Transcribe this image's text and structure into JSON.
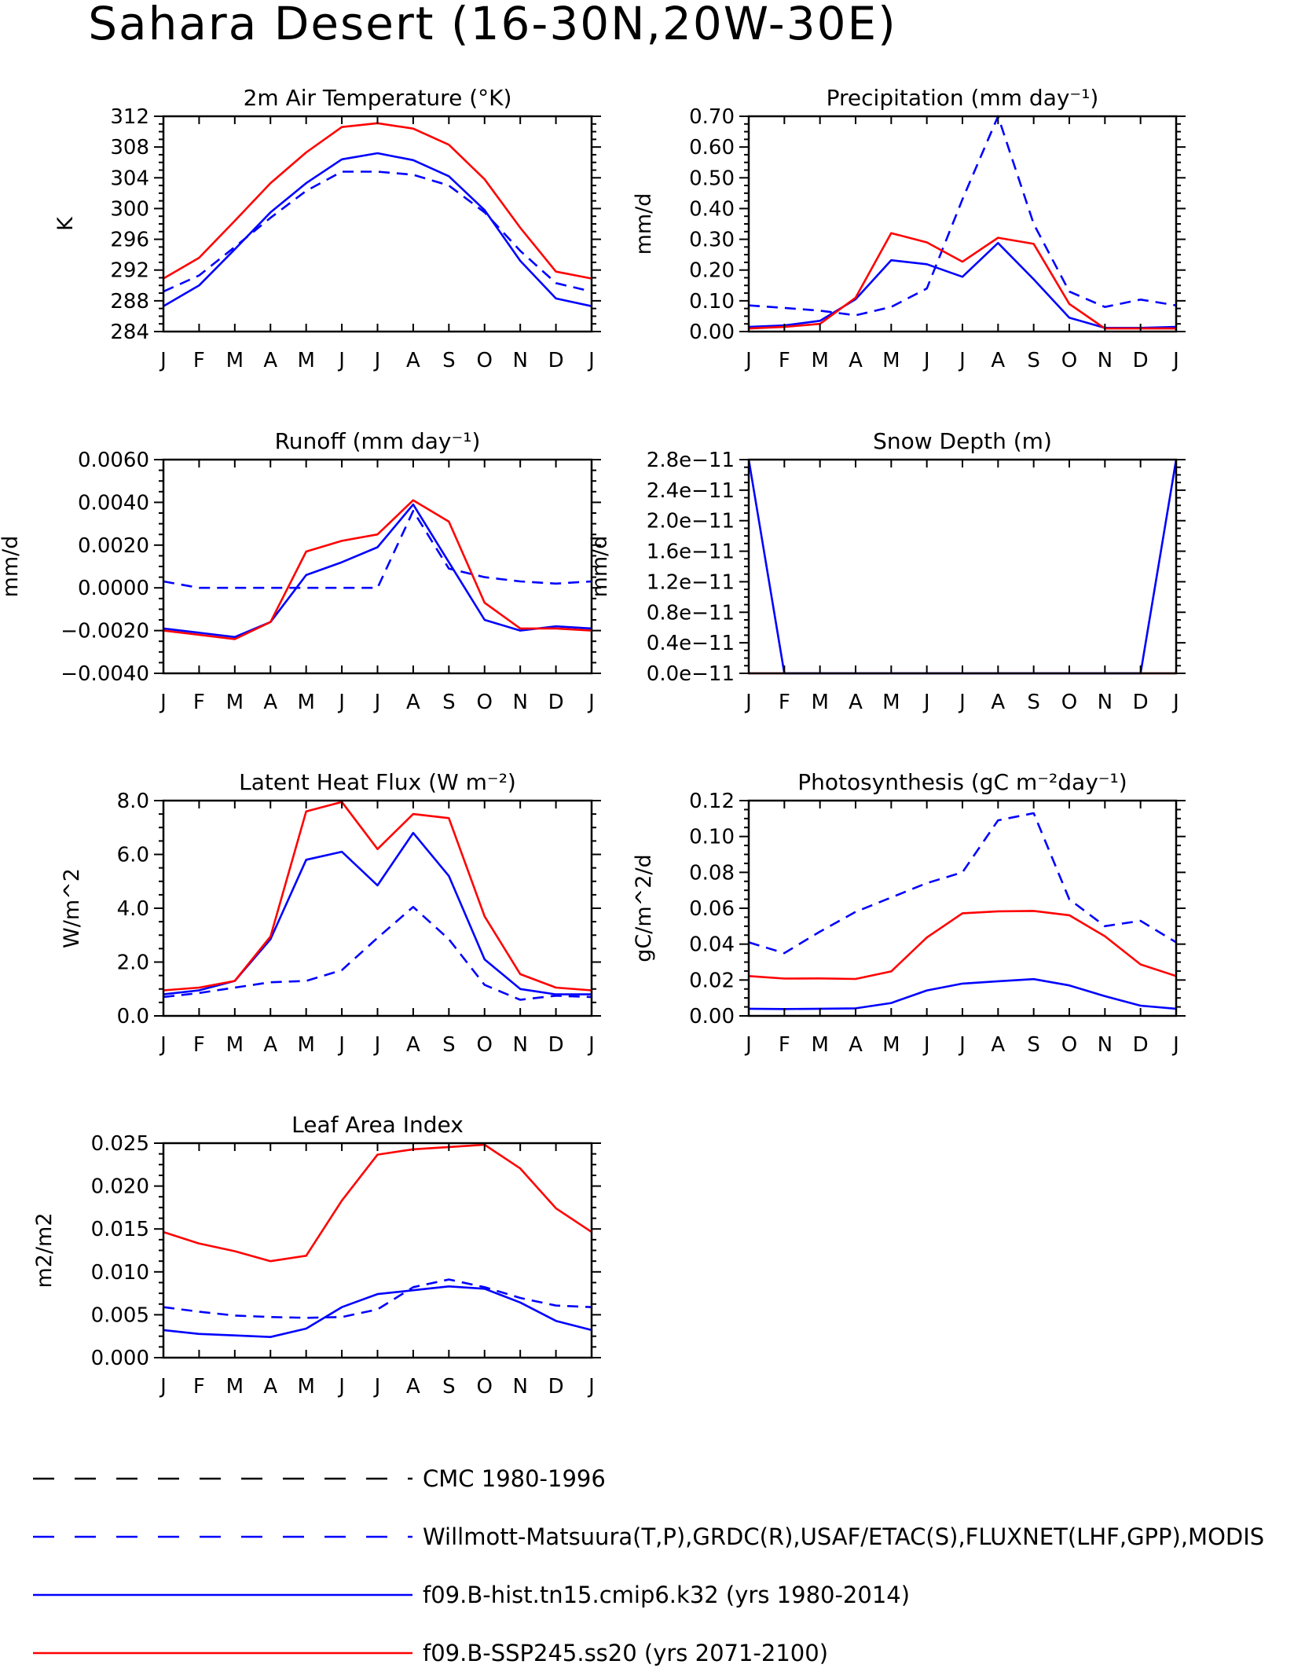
{
  "figure_title": "Sahara Desert (16-30N,20W-30E)",
  "months": [
    "J",
    "F",
    "M",
    "A",
    "M",
    "J",
    "J",
    "A",
    "S",
    "O",
    "N",
    "D",
    "J"
  ],
  "colors": {
    "obs_cmc": "#000000",
    "obs_other": "#0000ff",
    "hist": "#0000ff",
    "future": "#ff0000"
  },
  "legend": [
    {
      "label": "CMC 1980-1996",
      "color": "#000000",
      "dashed": true
    },
    {
      "label": "Willmott-Matsuura(T,P),GRDC(R),USAF/ETAC(S),FLUXNET(LHF,GPP),MODIS",
      "color": "#0000ff",
      "dashed": true
    },
    {
      "label": "f09.B-hist.tn15.cmip6.k32 (yrs 1980-2014)",
      "color": "#0000ff",
      "dashed": false
    },
    {
      "label": "f09.B-SSP245.ss20 (yrs 2071-2100)",
      "color": "#ff0000",
      "dashed": false
    }
  ],
  "chart_data": [
    {
      "type": "line",
      "title": "2m Air Temperature (°K)",
      "ylabel": "K",
      "ylim": [
        284,
        312
      ],
      "yticks": [
        "284",
        "288",
        "292",
        "296",
        "300",
        "304",
        "308",
        "312"
      ],
      "series": [
        {
          "name": "Willmott-Matsuura(T,P),GRDC(R),USAF/ETAC(S),FLUXNET(LHF,GPP),MODIS",
          "color": "#0000ff",
          "dashed": true,
          "values": [
            289.2,
            291.3,
            295.0,
            298.8,
            302.3,
            304.8,
            304.8,
            304.4,
            303.0,
            299.5,
            294.5,
            290.3,
            289.2
          ]
        },
        {
          "name": "f09.B-hist.tn15.cmip6.k32 (yrs 1980-2014)",
          "color": "#0000ff",
          "dashed": false,
          "values": [
            287.3,
            290.0,
            294.7,
            299.5,
            303.3,
            306.4,
            307.2,
            306.3,
            304.2,
            299.8,
            293.2,
            288.3,
            287.3
          ]
        },
        {
          "name": "f09.B-SSP245.ss20 (yrs 2071-2100)",
          "color": "#ff0000",
          "dashed": false,
          "values": [
            290.9,
            293.6,
            298.4,
            303.3,
            307.3,
            310.6,
            311.1,
            310.4,
            308.3,
            303.8,
            297.5,
            291.8,
            290.9
          ]
        }
      ]
    },
    {
      "type": "line",
      "title": "Precipitation (mm day⁻¹)",
      "ylabel": "mm/d",
      "ylim": [
        0,
        0.7
      ],
      "yticks": [
        "0.00",
        "0.10",
        "0.20",
        "0.30",
        "0.40",
        "0.50",
        "0.60",
        "0.70"
      ],
      "series": [
        {
          "name": "Willmott-Matsuura(T,P),GRDC(R),USAF/ETAC(S),FLUXNET(LHF,GPP),MODIS",
          "color": "#0000ff",
          "dashed": true,
          "values": [
            0.085,
            0.077,
            0.068,
            0.053,
            0.08,
            0.14,
            0.43,
            0.7,
            0.35,
            0.13,
            0.08,
            0.104,
            0.085
          ]
        },
        {
          "name": "f09.B-hist.tn15.cmip6.k32 (yrs 1980-2014)",
          "color": "#0000ff",
          "dashed": false,
          "values": [
            0.015,
            0.02,
            0.035,
            0.105,
            0.232,
            0.219,
            0.178,
            0.288,
            0.17,
            0.045,
            0.012,
            0.012,
            0.015
          ]
        },
        {
          "name": "f09.B-SSP245.ss20 (yrs 2071-2100)",
          "color": "#ff0000",
          "dashed": false,
          "values": [
            0.01,
            0.015,
            0.025,
            0.11,
            0.32,
            0.29,
            0.227,
            0.305,
            0.285,
            0.09,
            0.01,
            0.01,
            0.01
          ]
        }
      ]
    },
    {
      "type": "line",
      "title": "Runoff (mm day⁻¹)",
      "ylabel": "mm/d",
      "ylim": [
        -0.004,
        0.006
      ],
      "yticks": [
        "−0.0040",
        "−0.0020",
        "0.0000",
        "0.0020",
        "0.0040",
        "0.0060"
      ],
      "series": [
        {
          "name": "Willmott-Matsuura(T,P),GRDC(R),USAF/ETAC(S),FLUXNET(LHF,GPP),MODIS",
          "color": "#0000ff",
          "dashed": true,
          "values": [
            0.0003,
            0.0,
            0.0,
            0.0,
            0.0,
            0.0,
            0.0,
            0.0036,
            0.0009,
            0.0005,
            0.0003,
            0.0002,
            0.0003
          ]
        },
        {
          "name": "f09.B-hist.tn15.cmip6.k32 (yrs 1980-2014)",
          "color": "#0000ff",
          "dashed": false,
          "values": [
            -0.0019,
            -0.0021,
            -0.0023,
            -0.0016,
            0.0006,
            0.0012,
            0.0019,
            0.0039,
            0.0012,
            -0.0015,
            -0.002,
            -0.0018,
            -0.0019
          ]
        },
        {
          "name": "f09.B-SSP245.ss20 (yrs 2071-2100)",
          "color": "#ff0000",
          "dashed": false,
          "values": [
            -0.002,
            -0.0022,
            -0.0024,
            -0.0016,
            0.0017,
            0.0022,
            0.0025,
            0.0041,
            0.0031,
            -0.0007,
            -0.0019,
            -0.0019,
            -0.002
          ]
        }
      ]
    },
    {
      "type": "line",
      "title": "Snow Depth (m)",
      "ylabel": "mm/d",
      "ylim": [
        0,
        2.8e-11
      ],
      "yticks": [
        "0.0e−11",
        "0.4e−11",
        "0.8e−11",
        "1.2e−11",
        "1.6e−11",
        "2.0e−11",
        "2.4e−11",
        "2.8e−11"
      ],
      "series": [
        {
          "name": "f09.B-SSP245.ss20 (yrs 2071-2100)",
          "color": "#ff0000",
          "dashed": false,
          "values": [
            0,
            0,
            0,
            0,
            0,
            0,
            0,
            0,
            0,
            0,
            0,
            0,
            0
          ]
        },
        {
          "name": "f09.B-hist.tn15.cmip6.k32 (yrs 1980-2014)",
          "color": "#0000ff",
          "dashed": false,
          "values": [
            2.8e-11,
            0,
            0,
            0,
            0,
            0,
            0,
            0,
            0,
            0,
            0,
            0,
            2.8e-11
          ]
        }
      ]
    },
    {
      "type": "line",
      "title": "Latent Heat Flux (W m⁻²)",
      "ylabel": "W/m^2",
      "ylim": [
        0,
        8
      ],
      "yticks": [
        "0.0",
        "2.0",
        "4.0",
        "6.0",
        "8.0"
      ],
      "series": [
        {
          "name": "Willmott-Matsuura(T,P),GRDC(R),USAF/ETAC(S),FLUXNET(LHF,GPP),MODIS",
          "color": "#0000ff",
          "dashed": true,
          "values": [
            0.7,
            0.85,
            1.05,
            1.25,
            1.3,
            1.7,
            2.9,
            4.05,
            2.85,
            1.15,
            0.6,
            0.75,
            0.7
          ]
        },
        {
          "name": "f09.B-hist.tn15.cmip6.k32 (yrs 1980-2014)",
          "color": "#0000ff",
          "dashed": false,
          "values": [
            0.8,
            0.95,
            1.3,
            2.85,
            5.8,
            6.1,
            4.85,
            6.8,
            5.2,
            2.1,
            1.0,
            0.8,
            0.8
          ]
        },
        {
          "name": "f09.B-SSP245.ss20 (yrs 2071-2100)",
          "color": "#ff0000",
          "dashed": false,
          "values": [
            0.95,
            1.05,
            1.3,
            2.95,
            7.6,
            7.95,
            6.2,
            7.5,
            7.35,
            3.7,
            1.55,
            1.05,
            0.95
          ]
        }
      ]
    },
    {
      "type": "line",
      "title": "Photosynthesis (gC m⁻²day⁻¹)",
      "ylabel": "gC/m^2/d",
      "ylim": [
        0,
        0.12
      ],
      "yticks": [
        "0.00",
        "0.02",
        "0.04",
        "0.06",
        "0.08",
        "0.10",
        "0.12"
      ],
      "series": [
        {
          "name": "Willmott-Matsuura(T,P),GRDC(R),USAF/ETAC(S),FLUXNET(LHF,GPP),MODIS",
          "color": "#0000ff",
          "dashed": true,
          "values": [
            0.041,
            0.035,
            0.047,
            0.058,
            0.066,
            0.074,
            0.08,
            0.109,
            0.113,
            0.065,
            0.05,
            0.053,
            0.041
          ]
        },
        {
          "name": "f09.B-hist.tn15.cmip6.k32 (yrs 1980-2014)",
          "color": "#0000ff",
          "dashed": false,
          "values": [
            0.004,
            0.0038,
            0.004,
            0.0042,
            0.0072,
            0.0142,
            0.018,
            0.0193,
            0.0205,
            0.017,
            0.011,
            0.0057,
            0.004
          ]
        },
        {
          "name": "f09.B-SSP245.ss20 (yrs 2071-2100)",
          "color": "#ff0000",
          "dashed": false,
          "values": [
            0.0222,
            0.0208,
            0.0209,
            0.0206,
            0.0248,
            0.0437,
            0.0572,
            0.0583,
            0.0585,
            0.0561,
            0.0444,
            0.0287,
            0.0222
          ]
        }
      ]
    },
    {
      "type": "line",
      "title": "Leaf Area Index",
      "ylabel": "m2/m2",
      "ylim": [
        0,
        0.028
      ],
      "yticks": [
        "0.000",
        "0.005",
        "0.010",
        "0.015",
        "0.020",
        "0.025"
      ],
      "series": [
        {
          "name": "Willmott-Matsuura(T,P),GRDC(R),USAF/ETAC(S),FLUXNET(LHF,GPP),MODIS",
          "color": "#0000ff",
          "dashed": true,
          "values": [
            0.0066,
            0.006,
            0.0055,
            0.0053,
            0.0052,
            0.0053,
            0.0063,
            0.0092,
            0.0102,
            0.0092,
            0.0078,
            0.0068,
            0.0066
          ]
        },
        {
          "name": "f09.B-hist.tn15.cmip6.k32 (yrs 1980-2014)",
          "color": "#0000ff",
          "dashed": false,
          "values": [
            0.0036,
            0.0031,
            0.0029,
            0.0027,
            0.0038,
            0.0066,
            0.0083,
            0.0088,
            0.0093,
            0.009,
            0.0072,
            0.0048,
            0.0036
          ]
        },
        {
          "name": "f09.B-SSP245.ss20 (yrs 2071-2100)",
          "color": "#ff0000",
          "dashed": false,
          "values": [
            0.0164,
            0.0149,
            0.0139,
            0.0126,
            0.0133,
            0.0205,
            0.0265,
            0.0272,
            0.0275,
            0.0278,
            0.0247,
            0.0195,
            0.0164
          ]
        }
      ]
    }
  ]
}
